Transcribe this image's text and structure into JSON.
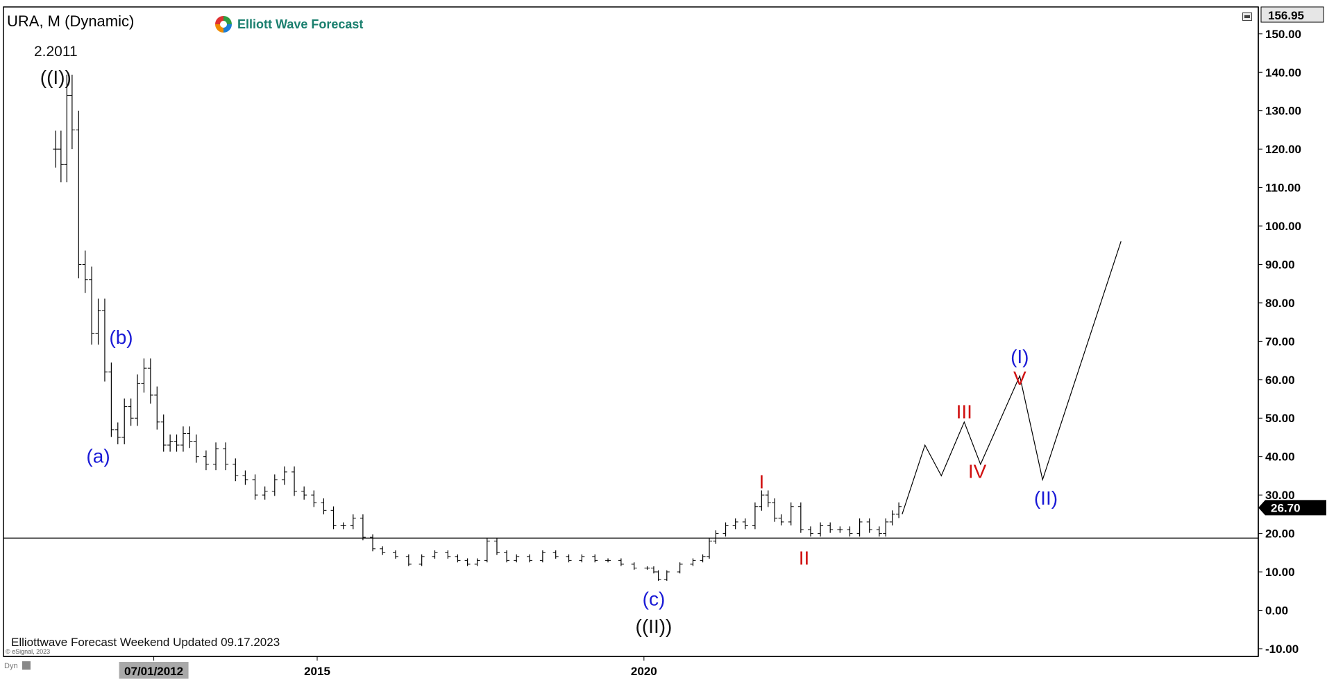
{
  "header": {
    "symbol_label": "URA, M (Dynamic)",
    "brand": "Elliott Wave Forecast"
  },
  "footer": {
    "note": "Elliottwave Forecast Weekend Updated 09.17.2023",
    "esignal": "© eSignal, 2023",
    "dyn": "Dyn"
  },
  "colors": {
    "wave_black": "#111111",
    "wave_blue": "#1a1ad6",
    "wave_red": "#d01010",
    "bar": "#000000"
  },
  "chart_data": {
    "type": "line",
    "instrument": "URA",
    "timeframe": "Monthly",
    "ylim": [
      -12,
      157
    ],
    "yticks": [
      -10,
      0,
      10,
      20,
      30,
      40,
      50,
      60,
      70,
      80,
      90,
      100,
      110,
      120,
      130,
      140,
      150
    ],
    "ytick_labels": [
      "-10.00",
      "0.00",
      "10.00",
      "20.00",
      "30.00",
      "40.00",
      "50.00",
      "60.00",
      "70.00",
      "80.00",
      "90.00",
      "100.00",
      "110.00",
      "120.00",
      "130.00",
      "140.00",
      "150.00"
    ],
    "xlim": [
      2010.2,
      2029.4
    ],
    "xticks": [
      {
        "x": 2012.5,
        "label": "07/01/2012",
        "highlight": true
      },
      {
        "x": 2015.0,
        "label": "2015",
        "highlight": false
      },
      {
        "x": 2020.0,
        "label": "2020",
        "highlight": false
      }
    ],
    "top_price_label": "156.95",
    "last_price": 26.7,
    "last_price_label": "26.70",
    "horizontal_line": 18.8,
    "price_series": [
      [
        2011.0,
        120
      ],
      [
        2011.08,
        116
      ],
      [
        2011.17,
        134
      ],
      [
        2011.25,
        125
      ],
      [
        2011.35,
        90
      ],
      [
        2011.45,
        86
      ],
      [
        2011.55,
        72
      ],
      [
        2011.65,
        78
      ],
      [
        2011.75,
        62
      ],
      [
        2011.85,
        47
      ],
      [
        2011.95,
        45
      ],
      [
        2012.05,
        53
      ],
      [
        2012.15,
        50
      ],
      [
        2012.25,
        59
      ],
      [
        2012.35,
        63
      ],
      [
        2012.45,
        56
      ],
      [
        2012.55,
        49
      ],
      [
        2012.65,
        43
      ],
      [
        2012.75,
        44
      ],
      [
        2012.85,
        43
      ],
      [
        2012.95,
        46
      ],
      [
        2013.05,
        44
      ],
      [
        2013.15,
        40
      ],
      [
        2013.3,
        38
      ],
      [
        2013.45,
        42
      ],
      [
        2013.6,
        38
      ],
      [
        2013.75,
        35
      ],
      [
        2013.9,
        34
      ],
      [
        2014.05,
        30
      ],
      [
        2014.2,
        31
      ],
      [
        2014.35,
        34
      ],
      [
        2014.5,
        36
      ],
      [
        2014.65,
        31
      ],
      [
        2014.8,
        30
      ],
      [
        2014.95,
        28
      ],
      [
        2015.1,
        26
      ],
      [
        2015.25,
        22
      ],
      [
        2015.4,
        22
      ],
      [
        2015.55,
        24
      ],
      [
        2015.7,
        19
      ],
      [
        2015.85,
        16
      ],
      [
        2016.0,
        15
      ],
      [
        2016.2,
        14
      ],
      [
        2016.4,
        12
      ],
      [
        2016.6,
        14
      ],
      [
        2016.8,
        15
      ],
      [
        2017.0,
        14
      ],
      [
        2017.15,
        13
      ],
      [
        2017.3,
        12
      ],
      [
        2017.45,
        13
      ],
      [
        2017.6,
        18
      ],
      [
        2017.75,
        15
      ],
      [
        2017.9,
        13
      ],
      [
        2018.05,
        14
      ],
      [
        2018.25,
        13
      ],
      [
        2018.45,
        15
      ],
      [
        2018.65,
        14
      ],
      [
        2018.85,
        13
      ],
      [
        2019.05,
        14
      ],
      [
        2019.25,
        13
      ],
      [
        2019.45,
        13
      ],
      [
        2019.65,
        12
      ],
      [
        2019.85,
        11
      ],
      [
        2020.05,
        11
      ],
      [
        2020.15,
        10
      ],
      [
        2020.22,
        8
      ],
      [
        2020.35,
        10
      ],
      [
        2020.55,
        12
      ],
      [
        2020.75,
        13
      ],
      [
        2020.9,
        14
      ],
      [
        2021.0,
        18
      ],
      [
        2021.1,
        20
      ],
      [
        2021.25,
        22
      ],
      [
        2021.4,
        23
      ],
      [
        2021.55,
        22
      ],
      [
        2021.7,
        27
      ],
      [
        2021.8,
        30
      ],
      [
        2021.9,
        28
      ],
      [
        2022.0,
        24
      ],
      [
        2022.1,
        23
      ],
      [
        2022.25,
        27
      ],
      [
        2022.4,
        21
      ],
      [
        2022.55,
        20
      ],
      [
        2022.7,
        22
      ],
      [
        2022.85,
        21
      ],
      [
        2023.0,
        21
      ],
      [
        2023.15,
        20
      ],
      [
        2023.3,
        23
      ],
      [
        2023.45,
        21
      ],
      [
        2023.6,
        20
      ],
      [
        2023.7,
        23
      ],
      [
        2023.8,
        25
      ],
      [
        2023.9,
        27
      ]
    ],
    "projection": [
      [
        2023.95,
        25
      ],
      [
        2024.3,
        43
      ],
      [
        2024.55,
        35
      ],
      [
        2024.9,
        49
      ],
      [
        2025.15,
        38
      ],
      [
        2025.75,
        61
      ],
      [
        2026.1,
        34
      ],
      [
        2027.3,
        96
      ]
    ],
    "wave_labels": [
      {
        "text": "2.2011",
        "x": 2011.0,
        "y": 145.2,
        "color": "black"
      },
      {
        "text": "((I))",
        "x": 2011.0,
        "y": 138.3,
        "color": "black"
      },
      {
        "text": "(a)",
        "x": 2011.65,
        "y": 39.7,
        "color": "blue"
      },
      {
        "text": "(b)",
        "x": 2012.0,
        "y": 70.7,
        "color": "blue"
      },
      {
        "text": "(c)",
        "x": 2020.15,
        "y": 2.6,
        "color": "blue"
      },
      {
        "text": "((II))",
        "x": 2020.15,
        "y": -4.5,
        "color": "black"
      },
      {
        "text": "I",
        "x": 2021.8,
        "y": 33.1,
        "color": "red"
      },
      {
        "text": "II",
        "x": 2022.45,
        "y": 13.2,
        "color": "red"
      },
      {
        "text": "III",
        "x": 2024.9,
        "y": 51.3,
        "color": "red"
      },
      {
        "text": "IV",
        "x": 2025.1,
        "y": 35.8,
        "color": "red"
      },
      {
        "text": "V",
        "x": 2025.75,
        "y": 60.0,
        "color": "red"
      },
      {
        "text": "(I)",
        "x": 2025.75,
        "y": 65.6,
        "color": "blue"
      },
      {
        "text": "(II)",
        "x": 2026.15,
        "y": 28.8,
        "color": "blue"
      }
    ],
    "grid": false,
    "legend": "none"
  }
}
